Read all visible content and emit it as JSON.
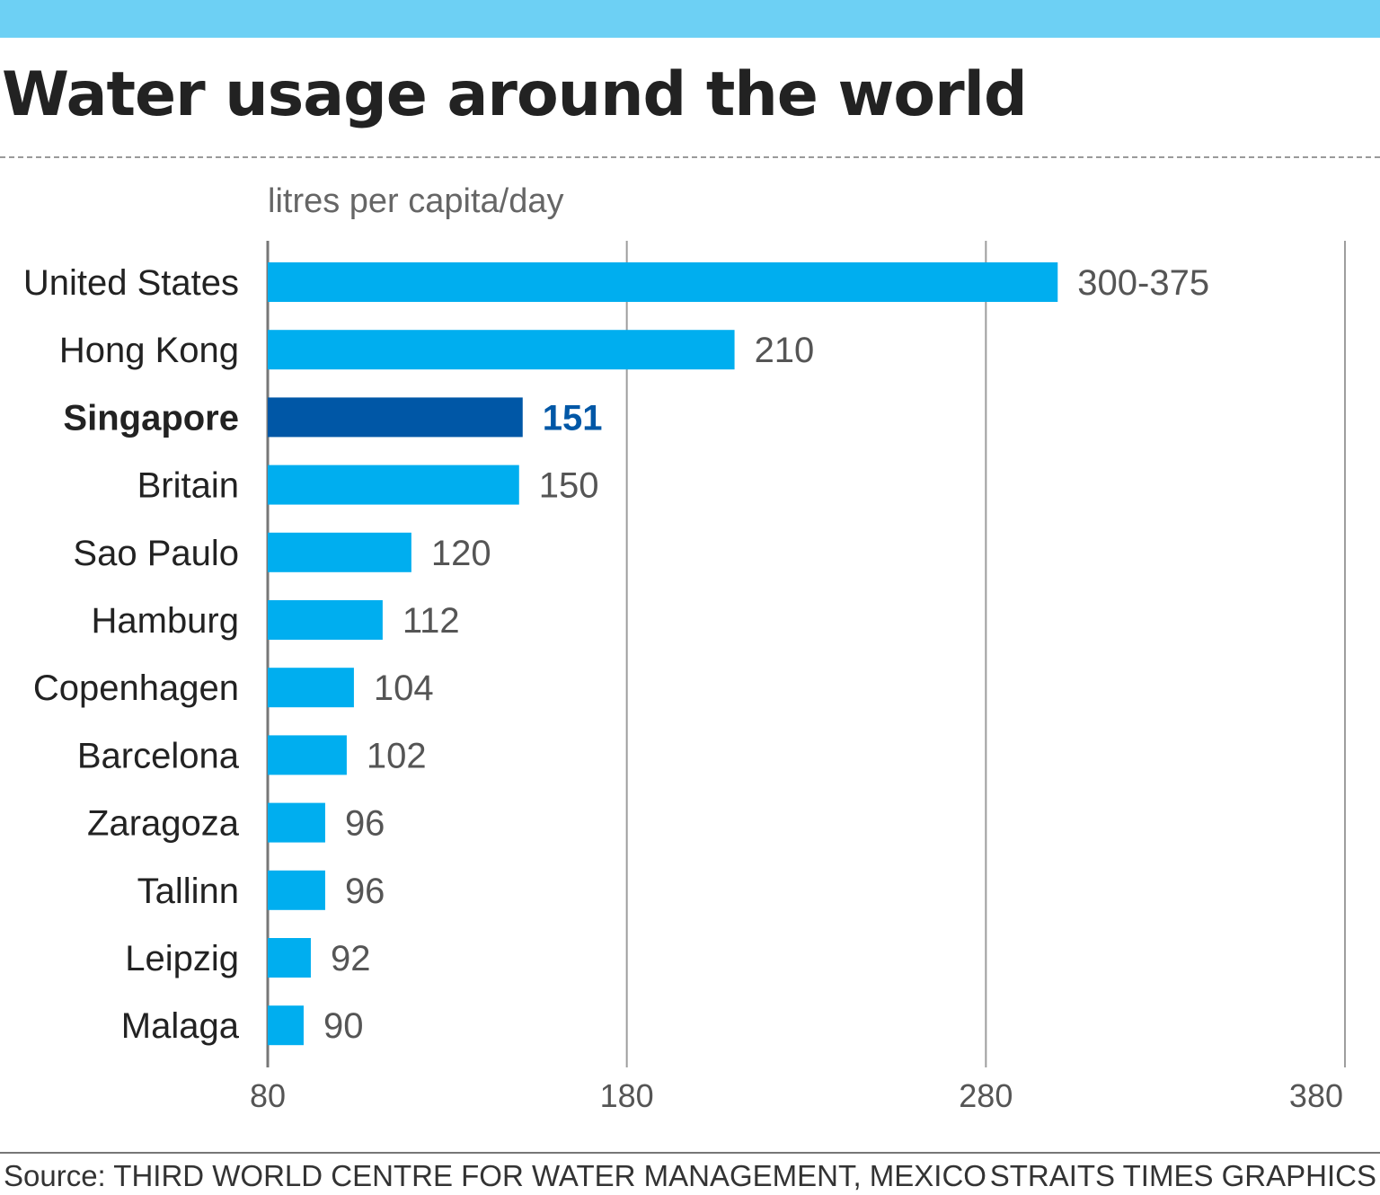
{
  "header": {
    "title": "Water usage around the world"
  },
  "colors": {
    "top_bar": "#6dd0f4",
    "bar": "#00aeef",
    "highlight_bar": "#0057a6",
    "highlight_text": "#0057a6",
    "grid": "#9e9e9e",
    "label_text": "#222222",
    "value_text": "#555555"
  },
  "chart_data": {
    "type": "bar",
    "orientation": "horizontal",
    "unit_label": "litres per capita/day",
    "categories": [
      "United States",
      "Hong Kong",
      "Singapore",
      "Britain",
      "Sao Paulo",
      "Hamburg",
      "Copenhagen",
      "Barcelona",
      "Zaragoza",
      "Tallinn",
      "Leipzig",
      "Malaga"
    ],
    "values": [
      300,
      210,
      151,
      150,
      120,
      112,
      104,
      102,
      96,
      96,
      92,
      90
    ],
    "value_labels": [
      "300-375",
      "210",
      "151",
      "150",
      "120",
      "112",
      "104",
      "102",
      "96",
      "96",
      "92",
      "90"
    ],
    "highlight": "Singapore",
    "xlim": [
      80,
      380
    ],
    "xticks": [
      80,
      180,
      280,
      380
    ],
    "grid": true
  },
  "footer": {
    "source": "Source: THIRD WORLD CENTRE FOR WATER MANAGEMENT, MEXICO",
    "credit": "STRAITS TIMES GRAPHICS"
  }
}
